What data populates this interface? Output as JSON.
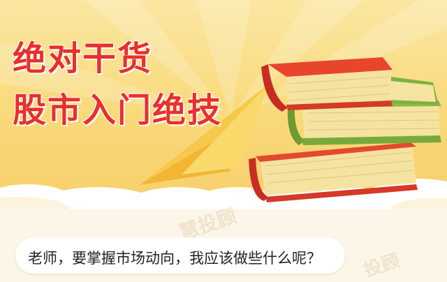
{
  "banner": {
    "title_line1": "绝对干货",
    "title_line2": "股市入门绝技"
  },
  "question": {
    "text": "老师，要掌握市场动向，我应该做些什么呢？"
  },
  "watermark": {
    "text1": "慧投顾",
    "text2": "投顾"
  },
  "colors": {
    "title_red": "#e9302a",
    "banner_yellow": "#f9d97a",
    "book_red": "#e1412b",
    "book_green": "#86b743",
    "pages": "#f5e3a1"
  },
  "icons": [
    "book-stack-illustration",
    "paper-plane-shape",
    "cloud-shape"
  ]
}
